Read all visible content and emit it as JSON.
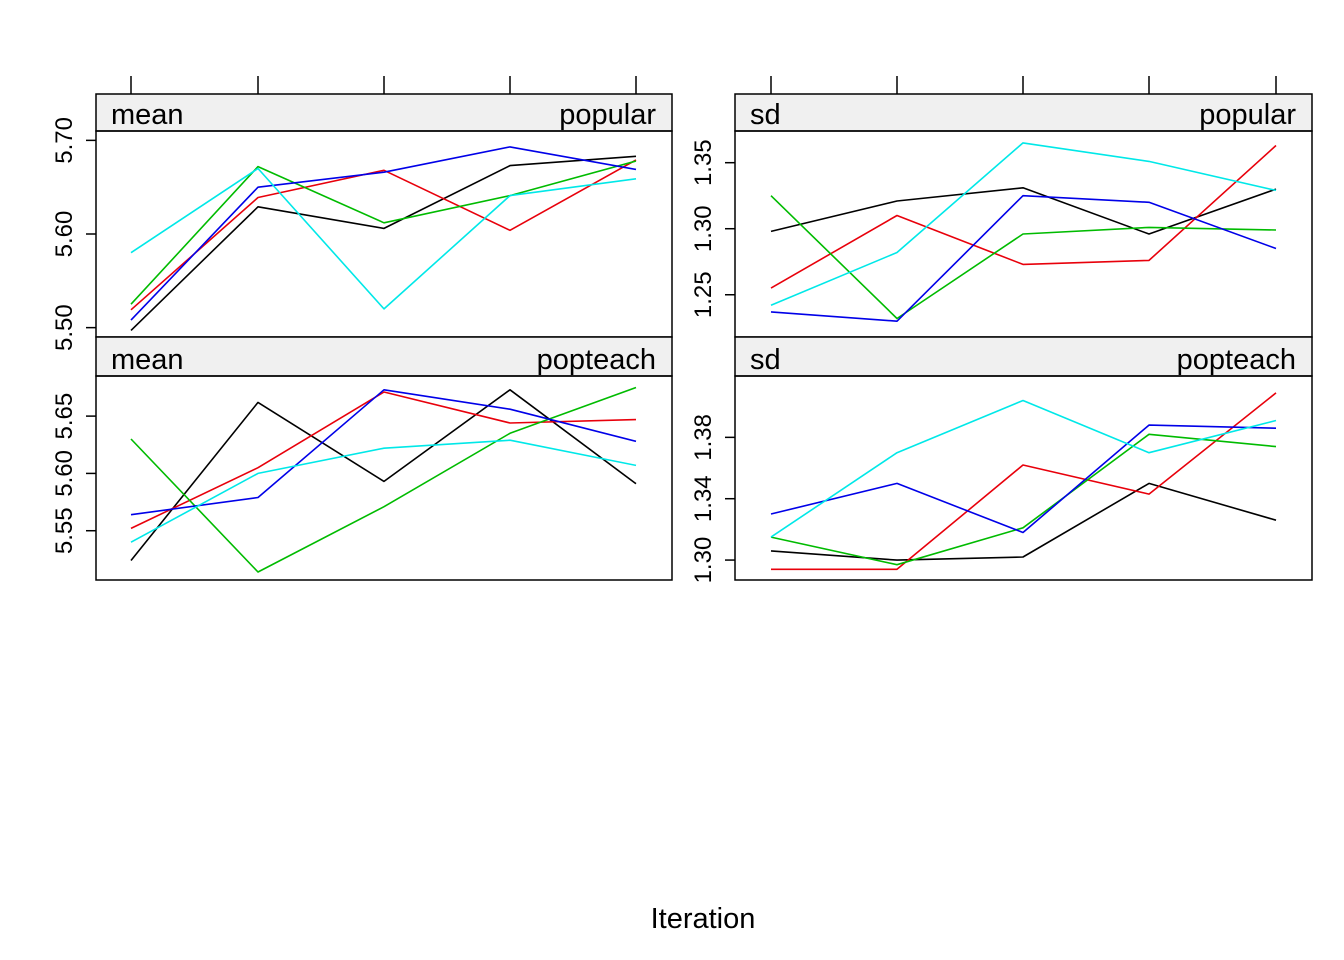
{
  "chart_data": {
    "type": "line",
    "xlabel": "Iteration",
    "x": [
      1,
      2,
      3,
      4,
      5
    ],
    "colors": [
      "#000000",
      "#E8000B",
      "#00BB00",
      "#0000E8",
      "#00E8E8"
    ],
    "grid": false,
    "panels": [
      {
        "strip_left": "mean",
        "strip_right": "popular",
        "ylim": [
          5.49,
          5.71
        ],
        "yticks": [
          "5.50",
          "5.60",
          "5.70"
        ],
        "series": [
          {
            "color": "#000000",
            "values": [
              5.497,
              5.629,
              5.606,
              5.673,
              5.683
            ]
          },
          {
            "color": "#E8000B",
            "values": [
              5.519,
              5.639,
              5.668,
              5.604,
              5.679
            ]
          },
          {
            "color": "#00BB00",
            "values": [
              5.525,
              5.672,
              5.612,
              5.641,
              5.678
            ]
          },
          {
            "color": "#0000E8",
            "values": [
              5.508,
              5.65,
              5.666,
              5.693,
              5.669
            ]
          },
          {
            "color": "#00E8E8",
            "values": [
              5.58,
              5.67,
              5.52,
              5.641,
              5.659
            ]
          }
        ]
      },
      {
        "strip_left": "sd",
        "strip_right": "popular",
        "ylim": [
          1.218,
          1.374
        ],
        "yticks": [
          "1.25",
          "1.30",
          "1.35"
        ],
        "series": [
          {
            "color": "#000000",
            "values": [
              1.298,
              1.321,
              1.331,
              1.296,
              1.33
            ]
          },
          {
            "color": "#E8000B",
            "values": [
              1.255,
              1.31,
              1.273,
              1.276,
              1.363
            ]
          },
          {
            "color": "#00BB00",
            "values": [
              1.325,
              1.232,
              1.296,
              1.301,
              1.299
            ]
          },
          {
            "color": "#0000E8",
            "values": [
              1.237,
              1.23,
              1.325,
              1.32,
              1.285
            ]
          },
          {
            "color": "#00E8E8",
            "values": [
              1.242,
              1.282,
              1.365,
              1.351,
              1.329
            ]
          }
        ]
      },
      {
        "strip_left": "mean",
        "strip_right": "popteach",
        "ylim": [
          5.507,
          5.685
        ],
        "yticks": [
          "5.55",
          "5.60",
          "5.65"
        ],
        "series": [
          {
            "color": "#000000",
            "values": [
              5.524,
              5.662,
              5.593,
              5.673,
              5.591
            ]
          },
          {
            "color": "#E8000B",
            "values": [
              5.552,
              5.605,
              5.671,
              5.644,
              5.647
            ]
          },
          {
            "color": "#00BB00",
            "values": [
              5.63,
              5.514,
              5.571,
              5.635,
              5.675
            ]
          },
          {
            "color": "#0000E8",
            "values": [
              5.564,
              5.579,
              5.673,
              5.656,
              5.628
            ]
          },
          {
            "color": "#00E8E8",
            "values": [
              5.54,
              5.6,
              5.622,
              5.629,
              5.607
            ]
          }
        ]
      },
      {
        "strip_left": "sd",
        "strip_right": "popteach",
        "ylim": [
          1.287,
          1.42
        ],
        "yticks": [
          "1.30",
          "1.34",
          "1.38"
        ],
        "series": [
          {
            "color": "#000000",
            "values": [
              1.306,
              1.3,
              1.302,
              1.35,
              1.326
            ]
          },
          {
            "color": "#E8000B",
            "values": [
              1.294,
              1.294,
              1.362,
              1.343,
              1.409
            ]
          },
          {
            "color": "#00BB00",
            "values": [
              1.315,
              1.297,
              1.321,
              1.382,
              1.374
            ]
          },
          {
            "color": "#0000E8",
            "values": [
              1.33,
              1.35,
              1.318,
              1.388,
              1.386
            ]
          },
          {
            "color": "#00E8E8",
            "values": [
              1.315,
              1.37,
              1.404,
              1.37,
              1.391
            ]
          }
        ]
      }
    ]
  }
}
